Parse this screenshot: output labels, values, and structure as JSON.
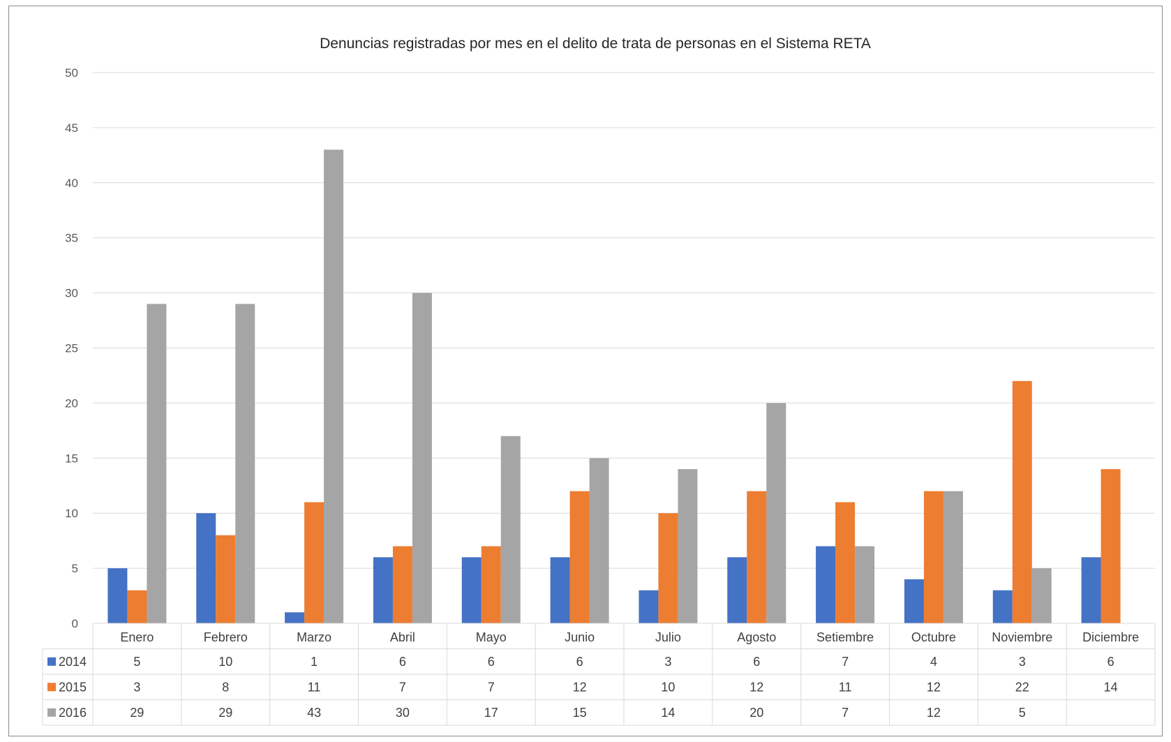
{
  "chart_data": {
    "type": "bar",
    "title": "Denuncias registradas por mes en el delito de trata de personas en el Sistema RETA",
    "xlabel": "",
    "ylabel": "",
    "ylim": [
      0,
      50
    ],
    "yticks": [
      0,
      5,
      10,
      15,
      20,
      25,
      30,
      35,
      40,
      45,
      50
    ],
    "grid": true,
    "legend": "data-table",
    "categories": [
      "Enero",
      "Febrero",
      "Marzo",
      "Abril",
      "Mayo",
      "Junio",
      "Julio",
      "Agosto",
      "Setiembre",
      "Octubre",
      "Noviembre",
      "Diciembre"
    ],
    "series": [
      {
        "name": "2014",
        "color": "#4472c4",
        "values": [
          5,
          10,
          1,
          6,
          6,
          6,
          3,
          6,
          7,
          4,
          3,
          6
        ]
      },
      {
        "name": "2015",
        "color": "#ed7d31",
        "values": [
          3,
          8,
          11,
          7,
          7,
          12,
          10,
          12,
          11,
          12,
          22,
          14
        ]
      },
      {
        "name": "2016",
        "color": "#a5a5a5",
        "values": [
          29,
          29,
          43,
          30,
          17,
          15,
          14,
          20,
          7,
          12,
          5,
          null
        ]
      }
    ]
  }
}
